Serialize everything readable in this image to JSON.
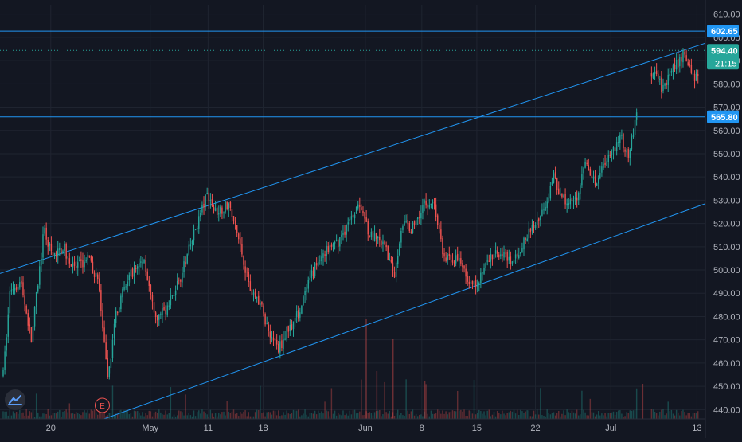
{
  "chart_data": {
    "type": "candlestick",
    "symbol": "",
    "colors": {
      "background": "#131722",
      "grid": "#1f2430",
      "up": "#26a69a",
      "down": "#ef5350",
      "line": "#2196f3",
      "axis_text": "#b2b5be",
      "last_price_badge": "#26a69a",
      "level_badge": "#2196f3"
    },
    "y_axis": {
      "range": [
        436,
        614
      ],
      "ticks": [
        "440.00",
        "450.00",
        "460.00",
        "470.00",
        "480.00",
        "490.00",
        "500.00",
        "510.00",
        "520.00",
        "530.00",
        "540.00",
        "550.00",
        "560.00",
        "570.00",
        "580.00",
        "590.00",
        "600.00",
        "610.00"
      ],
      "tick_values": [
        440,
        450,
        460,
        470,
        480,
        490,
        500,
        510,
        520,
        530,
        540,
        550,
        560,
        570,
        580,
        590,
        600,
        610
      ],
      "position": "right"
    },
    "x_axis": {
      "labels": [
        "20",
        "May",
        "11",
        "18",
        "Jun",
        "8",
        "15",
        "22",
        "Jul",
        "13"
      ]
    },
    "horizontal_levels": [
      {
        "value": 602.65,
        "label": "602.65"
      },
      {
        "value": 565.8,
        "label": "565.80"
      }
    ],
    "last_price": {
      "value": 594.4,
      "label": "594.40",
      "countdown": "21:15"
    },
    "channel": {
      "upper": {
        "x": [
          0,
          1
        ],
        "y": [
          498.5,
          597.5
        ]
      },
      "lower": {
        "x": [
          0,
          1
        ],
        "y": [
          420.0,
          528.5
        ]
      }
    },
    "earnings_marker": {
      "label": "E",
      "position": 0.145
    },
    "price_path": [
      [
        0.0,
        455
      ],
      [
        0.01,
        492
      ],
      [
        0.025,
        495
      ],
      [
        0.04,
        470
      ],
      [
        0.058,
        517
      ],
      [
        0.07,
        505
      ],
      [
        0.085,
        510
      ],
      [
        0.1,
        500
      ],
      [
        0.12,
        505
      ],
      [
        0.135,
        495
      ],
      [
        0.148,
        452
      ],
      [
        0.16,
        482
      ],
      [
        0.18,
        498
      ],
      [
        0.2,
        505
      ],
      [
        0.215,
        478
      ],
      [
        0.235,
        485
      ],
      [
        0.255,
        500
      ],
      [
        0.275,
        520
      ],
      [
        0.29,
        533
      ],
      [
        0.3,
        525
      ],
      [
        0.32,
        528
      ],
      [
        0.335,
        512
      ],
      [
        0.35,
        492
      ],
      [
        0.365,
        485
      ],
      [
        0.375,
        475
      ],
      [
        0.39,
        466
      ],
      [
        0.405,
        475
      ],
      [
        0.42,
        482
      ],
      [
        0.44,
        500
      ],
      [
        0.455,
        508
      ],
      [
        0.47,
        510
      ],
      [
        0.49,
        520
      ],
      [
        0.505,
        530
      ],
      [
        0.52,
        515
      ],
      [
        0.54,
        510
      ],
      [
        0.555,
        498
      ],
      [
        0.565,
        520
      ],
      [
        0.58,
        518
      ],
      [
        0.595,
        528
      ],
      [
        0.61,
        530
      ],
      [
        0.625,
        505
      ],
      [
        0.64,
        505
      ],
      [
        0.655,
        500
      ],
      [
        0.665,
        492
      ],
      [
        0.675,
        497
      ],
      [
        0.69,
        505
      ],
      [
        0.705,
        508
      ],
      [
        0.72,
        502
      ],
      [
        0.735,
        510
      ],
      [
        0.75,
        518
      ],
      [
        0.765,
        525
      ],
      [
        0.78,
        540
      ],
      [
        0.795,
        530
      ],
      [
        0.81,
        528
      ],
      [
        0.825,
        545
      ],
      [
        0.84,
        538
      ],
      [
        0.855,
        548
      ],
      [
        0.865,
        552
      ],
      [
        0.875,
        558
      ],
      [
        0.885,
        548
      ],
      [
        0.895,
        562
      ],
      [
        0.905,
        580
      ],
      [
        0.92,
        585
      ],
      [
        0.935,
        578
      ],
      [
        0.95,
        586
      ],
      [
        0.965,
        593
      ],
      [
        0.98,
        583
      ],
      [
        1.0,
        594
      ]
    ],
    "gap_fraction": [
      0.9,
      0.918
    ]
  }
}
